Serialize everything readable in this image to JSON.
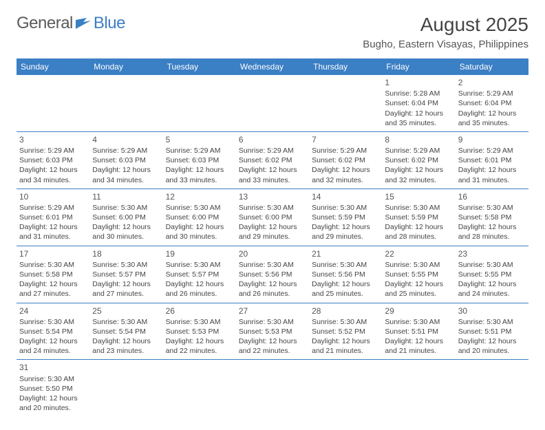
{
  "logo": {
    "word1": "General",
    "word2": "Blue"
  },
  "title": "August 2025",
  "location": "Bugho, Eastern Visayas, Philippines",
  "colors": {
    "header_bg": "#3b7fc4",
    "header_text": "#ffffff",
    "border": "#3b7fc4",
    "text": "#444444",
    "logo_gray": "#5a5a5a",
    "logo_blue": "#3b7fc4",
    "background": "#ffffff"
  },
  "typography": {
    "title_fontsize": 28,
    "location_fontsize": 15,
    "dayheader_fontsize": 12,
    "cell_fontsize": 10.5,
    "daynum_fontsize": 12
  },
  "day_headers": [
    "Sunday",
    "Monday",
    "Tuesday",
    "Wednesday",
    "Thursday",
    "Friday",
    "Saturday"
  ],
  "weeks": [
    [
      null,
      null,
      null,
      null,
      null,
      {
        "n": "1",
        "sr": "5:28 AM",
        "ss": "6:04 PM",
        "dl": "12 hours and 35 minutes."
      },
      {
        "n": "2",
        "sr": "5:29 AM",
        "ss": "6:04 PM",
        "dl": "12 hours and 35 minutes."
      }
    ],
    [
      {
        "n": "3",
        "sr": "5:29 AM",
        "ss": "6:03 PM",
        "dl": "12 hours and 34 minutes."
      },
      {
        "n": "4",
        "sr": "5:29 AM",
        "ss": "6:03 PM",
        "dl": "12 hours and 34 minutes."
      },
      {
        "n": "5",
        "sr": "5:29 AM",
        "ss": "6:03 PM",
        "dl": "12 hours and 33 minutes."
      },
      {
        "n": "6",
        "sr": "5:29 AM",
        "ss": "6:02 PM",
        "dl": "12 hours and 33 minutes."
      },
      {
        "n": "7",
        "sr": "5:29 AM",
        "ss": "6:02 PM",
        "dl": "12 hours and 32 minutes."
      },
      {
        "n": "8",
        "sr": "5:29 AM",
        "ss": "6:02 PM",
        "dl": "12 hours and 32 minutes."
      },
      {
        "n": "9",
        "sr": "5:29 AM",
        "ss": "6:01 PM",
        "dl": "12 hours and 31 minutes."
      }
    ],
    [
      {
        "n": "10",
        "sr": "5:29 AM",
        "ss": "6:01 PM",
        "dl": "12 hours and 31 minutes."
      },
      {
        "n": "11",
        "sr": "5:30 AM",
        "ss": "6:00 PM",
        "dl": "12 hours and 30 minutes."
      },
      {
        "n": "12",
        "sr": "5:30 AM",
        "ss": "6:00 PM",
        "dl": "12 hours and 30 minutes."
      },
      {
        "n": "13",
        "sr": "5:30 AM",
        "ss": "6:00 PM",
        "dl": "12 hours and 29 minutes."
      },
      {
        "n": "14",
        "sr": "5:30 AM",
        "ss": "5:59 PM",
        "dl": "12 hours and 29 minutes."
      },
      {
        "n": "15",
        "sr": "5:30 AM",
        "ss": "5:59 PM",
        "dl": "12 hours and 28 minutes."
      },
      {
        "n": "16",
        "sr": "5:30 AM",
        "ss": "5:58 PM",
        "dl": "12 hours and 28 minutes."
      }
    ],
    [
      {
        "n": "17",
        "sr": "5:30 AM",
        "ss": "5:58 PM",
        "dl": "12 hours and 27 minutes."
      },
      {
        "n": "18",
        "sr": "5:30 AM",
        "ss": "5:57 PM",
        "dl": "12 hours and 27 minutes."
      },
      {
        "n": "19",
        "sr": "5:30 AM",
        "ss": "5:57 PM",
        "dl": "12 hours and 26 minutes."
      },
      {
        "n": "20",
        "sr": "5:30 AM",
        "ss": "5:56 PM",
        "dl": "12 hours and 26 minutes."
      },
      {
        "n": "21",
        "sr": "5:30 AM",
        "ss": "5:56 PM",
        "dl": "12 hours and 25 minutes."
      },
      {
        "n": "22",
        "sr": "5:30 AM",
        "ss": "5:55 PM",
        "dl": "12 hours and 25 minutes."
      },
      {
        "n": "23",
        "sr": "5:30 AM",
        "ss": "5:55 PM",
        "dl": "12 hours and 24 minutes."
      }
    ],
    [
      {
        "n": "24",
        "sr": "5:30 AM",
        "ss": "5:54 PM",
        "dl": "12 hours and 24 minutes."
      },
      {
        "n": "25",
        "sr": "5:30 AM",
        "ss": "5:54 PM",
        "dl": "12 hours and 23 minutes."
      },
      {
        "n": "26",
        "sr": "5:30 AM",
        "ss": "5:53 PM",
        "dl": "12 hours and 22 minutes."
      },
      {
        "n": "27",
        "sr": "5:30 AM",
        "ss": "5:53 PM",
        "dl": "12 hours and 22 minutes."
      },
      {
        "n": "28",
        "sr": "5:30 AM",
        "ss": "5:52 PM",
        "dl": "12 hours and 21 minutes."
      },
      {
        "n": "29",
        "sr": "5:30 AM",
        "ss": "5:51 PM",
        "dl": "12 hours and 21 minutes."
      },
      {
        "n": "30",
        "sr": "5:30 AM",
        "ss": "5:51 PM",
        "dl": "12 hours and 20 minutes."
      }
    ],
    [
      {
        "n": "31",
        "sr": "5:30 AM",
        "ss": "5:50 PM",
        "dl": "12 hours and 20 minutes."
      },
      null,
      null,
      null,
      null,
      null,
      null
    ]
  ],
  "labels": {
    "sunrise": "Sunrise: ",
    "sunset": "Sunset: ",
    "daylight": "Daylight: "
  }
}
